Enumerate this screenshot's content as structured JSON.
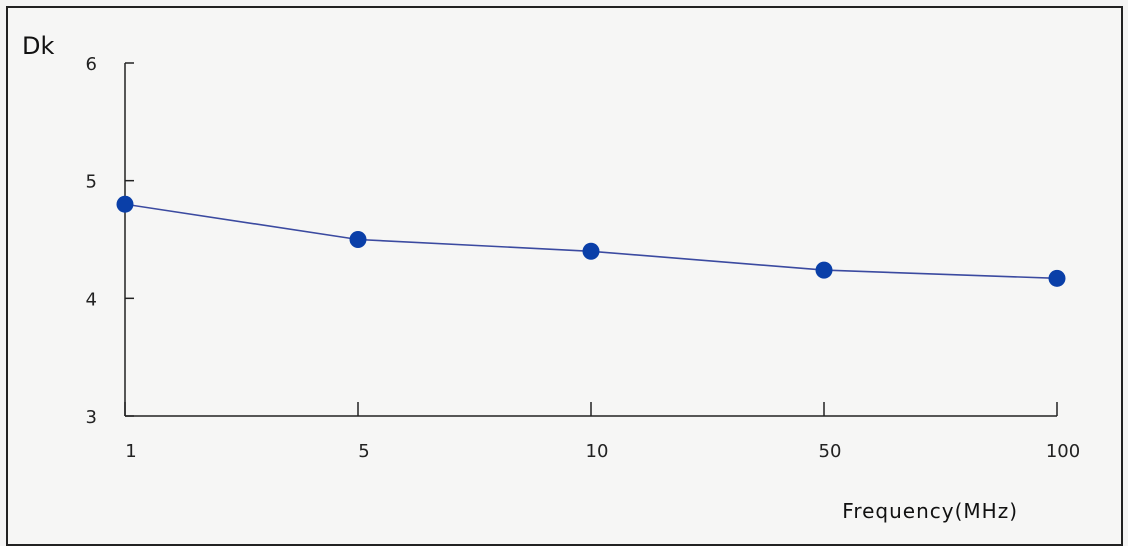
{
  "chart_data": {
    "type": "line",
    "ylabel": "Dk",
    "xlabel": "Frequency(MHz)",
    "categories": [
      "1",
      "5",
      "10",
      "50",
      "100"
    ],
    "series": [
      {
        "values": [
          4.8,
          4.5,
          4.4,
          4.24,
          4.17
        ]
      }
    ],
    "yticks": [
      3,
      4,
      5,
      6
    ],
    "ylim": [
      3,
      6
    ],
    "grid": false,
    "colors": {
      "line": "#3b4aa0",
      "marker": "#0a3fa8",
      "axis": "#222222"
    }
  }
}
